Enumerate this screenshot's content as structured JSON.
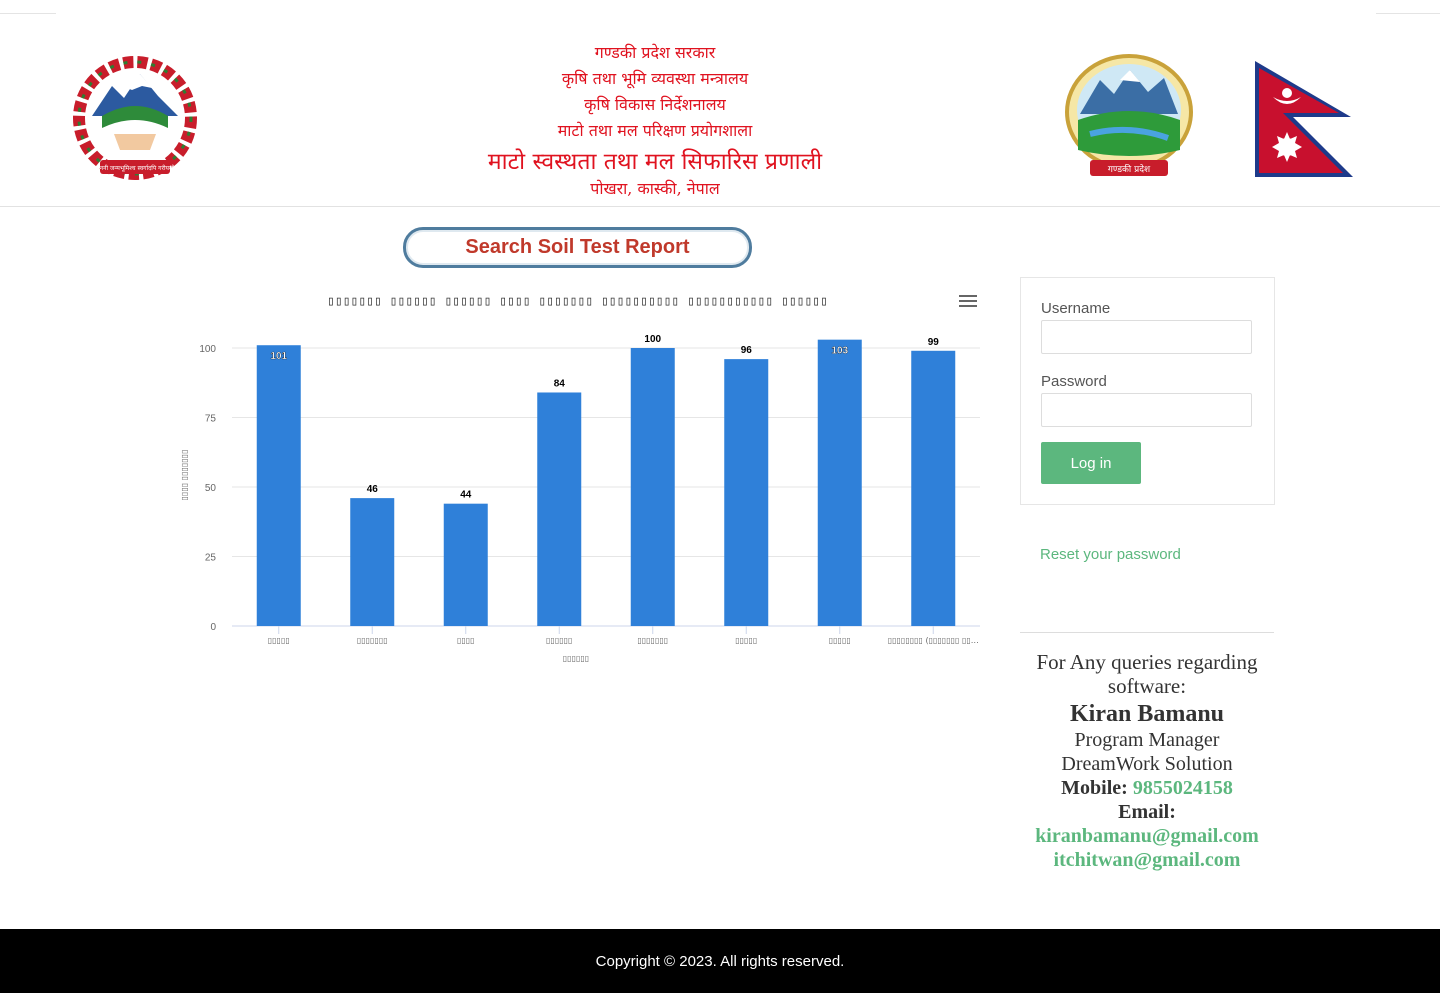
{
  "header": {
    "line1": "गण्डकी प्रदेश सरकार",
    "line2": "कृषि तथा भूमि व्यवस्था मन्त्रालय",
    "line3": "कृषि विकास निर्देशनालय",
    "line4": "माटो तथा मल परिक्षण प्रयोगशाला",
    "line5": "माटो स्वस्थता तथा मल सिफारिस प्रणाली",
    "line6": "पोखरा, कास्की, नेपाल",
    "left_logo_text": "जननी जन्मभूमिश्च स्वर्गादपि गरीयसी",
    "right_logo_text": "गण्डकी प्रदेश"
  },
  "search_button": {
    "label": "Search Soil Test Report"
  },
  "chart_data": {
    "type": "bar",
    "title": "▯▯▯▯▯▯▯ ▯▯▯▯▯▯ ▯▯▯▯▯▯ ▯▯▯▯ ▯▯▯▯▯▯▯ ▯▯▯▯▯▯▯▯▯▯ ▯▯▯▯▯▯▯▯▯▯▯ ▯▯▯▯▯▯",
    "categories": [
      "▯▯▯▯▯",
      "▯▯▯▯▯▯▯",
      "▯▯▯▯",
      "▯▯▯▯▯▯",
      "▯▯▯▯▯▯▯",
      "▯▯▯▯▯",
      "▯▯▯▯▯",
      "▯▯▯▯▯▯▯▯ (▯▯▯▯▯▯▯ ▯▯…"
    ],
    "values": [
      101,
      46,
      44,
      84,
      100,
      96,
      103,
      99
    ],
    "xlabel": "▯▯▯▯▯▯",
    "ylabel": "▯▯▯▯ ▯▯▯▯▯▯▯",
    "yticks": [
      0,
      25,
      50,
      75,
      100
    ],
    "ylim": [
      0,
      100
    ],
    "bar_color": "#2f80d9",
    "grid": true,
    "legend": "none"
  },
  "login": {
    "username_label": "Username",
    "password_label": "Password",
    "button_label": "Log in",
    "reset_link": "Reset your password"
  },
  "contact": {
    "query": "For Any queries regarding software:",
    "name": "Kiran Bamanu",
    "role": "Program Manager",
    "company": "DreamWork Solution",
    "mobile_label": "Mobile:",
    "mobile": "9855024158",
    "email_label": "Email:",
    "email1": "kiranbamanu@gmail.com",
    "email2": "itchitwan@gmail.com"
  },
  "footer": {
    "copyright": "Copyright © 2023. All rights reserved."
  },
  "colors": {
    "title_red": "#e0121f",
    "accent_green": "#5cb77e",
    "bar_blue": "#2f80d9",
    "search_border": "#4f7c9e",
    "search_text": "#c0392b"
  }
}
